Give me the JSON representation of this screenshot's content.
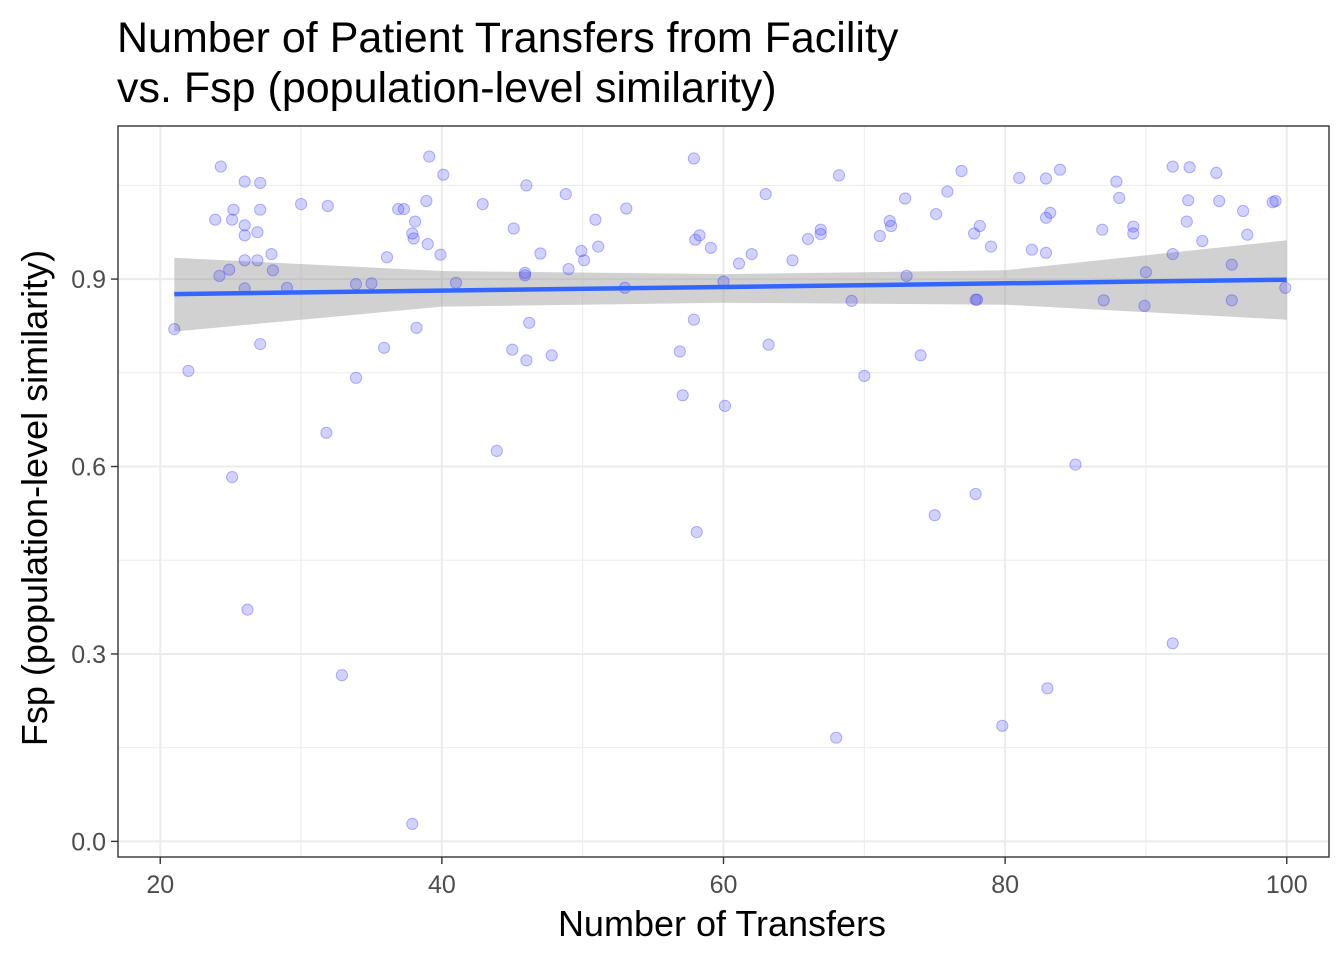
{
  "chart_data": {
    "type": "scatter",
    "title": [
      "Number of Patient Transfers from Facility",
      "vs. Fsp (population-level similarity)"
    ],
    "xlabel": "Number of Transfers",
    "ylabel": "Fsp (population-level similarity)",
    "xlim": [
      17,
      103
    ],
    "ylim": [
      -0.025,
      1.145
    ],
    "x_ticks": [
      20,
      40,
      60,
      80,
      100
    ],
    "x_tick_labels": [
      "20",
      "40",
      "60",
      "80",
      "100"
    ],
    "y_ticks": [
      0.0,
      0.3,
      0.6,
      0.9
    ],
    "y_tick_labels": [
      "0.0",
      "0.3",
      "0.6",
      "0.9"
    ],
    "x_minor": [
      30,
      50,
      70,
      90
    ],
    "y_minor": [
      0.15,
      0.45,
      0.75,
      1.05
    ],
    "grid": true,
    "legend": "none",
    "colors": {
      "points": "#3333ff",
      "fit_line": "#3366ff",
      "confidence_band": "#999999",
      "grid": "#ebebeb",
      "panel_border": "#333333"
    },
    "fit": {
      "method": "linear",
      "x_range": [
        21,
        100
      ],
      "y_start": 0.876,
      "y_end": 0.899,
      "band": {
        "x": [
          21,
          40,
          60,
          80,
          100
        ],
        "lower": [
          0.816,
          0.856,
          0.862,
          0.859,
          0.835
        ],
        "upper": [
          0.934,
          0.913,
          0.908,
          0.914,
          0.962
        ]
      }
    },
    "series": [
      {
        "points": [
          [
            21.0,
            0.82
          ],
          [
            22.0,
            0.753
          ],
          [
            23.9,
            0.995
          ],
          [
            24.2,
            0.905
          ],
          [
            24.3,
            1.08
          ],
          [
            24.9,
            0.915
          ],
          [
            25.2,
            1.011
          ],
          [
            25.1,
            0.995
          ],
          [
            25.1,
            0.583
          ],
          [
            26.0,
            1.056
          ],
          [
            26.0,
            0.986
          ],
          [
            26.0,
            0.97
          ],
          [
            26.0,
            0.93
          ],
          [
            26.0,
            0.885
          ],
          [
            26.2,
            0.371
          ],
          [
            26.9,
            0.975
          ],
          [
            26.9,
            0.93
          ],
          [
            27.1,
            1.054
          ],
          [
            27.1,
            1.011
          ],
          [
            27.1,
            0.796
          ],
          [
            27.9,
            0.94
          ],
          [
            28.0,
            0.914
          ],
          [
            29.0,
            0.886
          ],
          [
            30.0,
            1.02
          ],
          [
            31.8,
            0.654
          ],
          [
            31.9,
            1.017
          ],
          [
            32.9,
            0.266
          ],
          [
            33.9,
            0.892
          ],
          [
            33.9,
            0.742
          ],
          [
            35.0,
            0.893
          ],
          [
            35.9,
            0.79
          ],
          [
            36.1,
            0.935
          ],
          [
            36.9,
            1.012
          ],
          [
            37.3,
            1.012
          ],
          [
            37.9,
            0.973
          ],
          [
            38.0,
            0.965
          ],
          [
            37.9,
            0.028
          ],
          [
            38.1,
            0.992
          ],
          [
            38.2,
            0.822
          ],
          [
            38.9,
            1.025
          ],
          [
            39.0,
            0.956
          ],
          [
            39.1,
            1.096
          ],
          [
            39.9,
            0.939
          ],
          [
            40.1,
            1.067
          ],
          [
            41.0,
            0.894
          ],
          [
            42.9,
            1.02
          ],
          [
            43.9,
            0.625
          ],
          [
            45.0,
            0.787
          ],
          [
            45.1,
            0.981
          ],
          [
            45.9,
            0.91
          ],
          [
            45.9,
            0.906
          ],
          [
            46.0,
            0.77
          ],
          [
            46.0,
            1.05
          ],
          [
            46.2,
            0.83
          ],
          [
            47.0,
            0.941
          ],
          [
            47.8,
            0.778
          ],
          [
            48.8,
            1.036
          ],
          [
            49.0,
            0.916
          ],
          [
            49.9,
            0.945
          ],
          [
            50.1,
            0.93
          ],
          [
            50.9,
            0.995
          ],
          [
            51.1,
            0.952
          ],
          [
            53.0,
            0.886
          ],
          [
            53.1,
            1.013
          ],
          [
            56.9,
            0.784
          ],
          [
            57.1,
            0.714
          ],
          [
            57.9,
            1.093
          ],
          [
            57.9,
            0.835
          ],
          [
            58.0,
            0.963
          ],
          [
            58.1,
            0.495
          ],
          [
            58.3,
            0.97
          ],
          [
            59.1,
            0.95
          ],
          [
            60.0,
            0.896
          ],
          [
            60.1,
            0.697
          ],
          [
            61.1,
            0.925
          ],
          [
            62.0,
            0.94
          ],
          [
            63.0,
            1.036
          ],
          [
            63.2,
            0.795
          ],
          [
            64.9,
            0.93
          ],
          [
            66.0,
            0.964
          ],
          [
            66.9,
            0.979
          ],
          [
            66.9,
            0.972
          ],
          [
            68.0,
            0.166
          ],
          [
            68.2,
            1.066
          ],
          [
            69.1,
            0.865
          ],
          [
            70.0,
            0.745
          ],
          [
            71.1,
            0.969
          ],
          [
            71.8,
            0.993
          ],
          [
            71.9,
            0.985
          ],
          [
            72.9,
            1.029
          ],
          [
            73.0,
            0.905
          ],
          [
            74.0,
            0.778
          ],
          [
            75.0,
            0.522
          ],
          [
            75.1,
            1.004
          ],
          [
            75.9,
            1.04
          ],
          [
            76.9,
            1.073
          ],
          [
            77.8,
            0.973
          ],
          [
            77.9,
            0.867
          ],
          [
            78.0,
            0.867
          ],
          [
            77.9,
            0.556
          ],
          [
            78.2,
            0.985
          ],
          [
            79.0,
            0.952
          ],
          [
            79.8,
            0.185
          ],
          [
            81.0,
            1.062
          ],
          [
            81.9,
            0.947
          ],
          [
            82.9,
            0.998
          ],
          [
            82.9,
            0.942
          ],
          [
            82.9,
            1.061
          ],
          [
            83.0,
            0.245
          ],
          [
            83.2,
            1.006
          ],
          [
            83.9,
            1.075
          ],
          [
            85.0,
            0.603
          ],
          [
            86.9,
            0.979
          ],
          [
            87.0,
            0.866
          ],
          [
            87.9,
            1.056
          ],
          [
            88.1,
            1.03
          ],
          [
            89.1,
            0.984
          ],
          [
            89.1,
            0.973
          ],
          [
            89.9,
            0.857
          ],
          [
            90.0,
            0.911
          ],
          [
            91.9,
            0.94
          ],
          [
            91.9,
            1.08
          ],
          [
            91.9,
            0.317
          ],
          [
            92.9,
            0.992
          ],
          [
            93.0,
            1.026
          ],
          [
            93.1,
            1.079
          ],
          [
            94.0,
            0.961
          ],
          [
            95.0,
            1.07
          ],
          [
            95.2,
            1.025
          ],
          [
            96.1,
            0.923
          ],
          [
            96.1,
            0.866
          ],
          [
            96.9,
            1.009
          ],
          [
            97.2,
            0.971
          ],
          [
            99.0,
            1.023
          ],
          [
            99.2,
            1.025
          ],
          [
            99.9,
            0.886
          ]
        ]
      }
    ]
  }
}
